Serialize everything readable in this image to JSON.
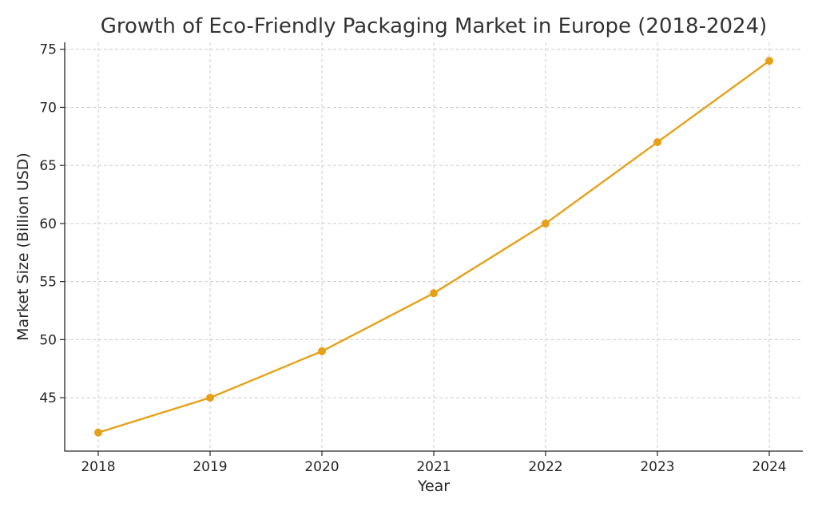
{
  "chart_data": {
    "type": "line",
    "title": "Growth of Eco-Friendly Packaging Market in Europe (2018-2024)",
    "xlabel": "Year",
    "ylabel": "Market Size (Billion USD)",
    "x": [
      "2018",
      "2019",
      "2020",
      "2021",
      "2022",
      "2023",
      "2024"
    ],
    "yticks": [
      45,
      50,
      55,
      60,
      65,
      70,
      75
    ],
    "ylim": [
      40.4,
      75.6
    ],
    "grid": true,
    "series": [
      {
        "values": [
          42,
          45,
          49,
          54,
          60,
          67,
          74
        ],
        "color": "#e6a118",
        "marker": "circle"
      }
    ]
  }
}
